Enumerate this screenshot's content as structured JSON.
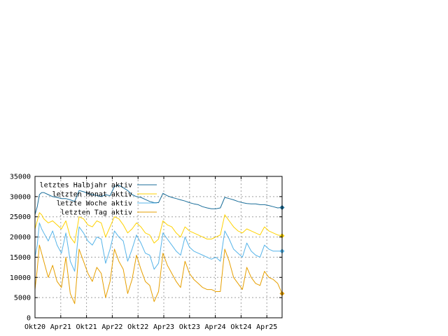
{
  "chart_data": {
    "type": "line",
    "xlabel": "",
    "ylabel": "",
    "ylim": [
      0,
      35000
    ],
    "y_ticks": [
      0,
      5000,
      10000,
      15000,
      20000,
      25000,
      30000,
      35000
    ],
    "x_ticks": [
      "Okt20",
      "Apr21",
      "Okt21",
      "Apr22",
      "Okt22",
      "Apr23",
      "Okt23",
      "Apr24",
      "Okt24",
      "Apr25"
    ],
    "grid": true,
    "legend_position": "top-left",
    "series": [
      {
        "name": "letztes Halbjahr aktiv",
        "color": "#1a6e9a",
        "marker_end": true,
        "x": [
          0,
          0.5,
          1,
          1.5,
          2,
          3,
          4,
          5,
          6,
          7,
          8,
          9,
          10,
          11,
          12,
          13,
          14,
          15,
          16,
          17,
          18,
          19,
          20,
          21,
          22,
          23,
          24,
          25,
          26,
          27,
          28,
          29,
          30,
          31,
          32,
          33,
          34,
          35,
          36,
          37,
          38,
          39,
          40,
          41,
          42,
          43,
          44,
          45,
          46,
          47,
          48,
          49,
          50,
          51,
          52,
          53,
          54,
          55,
          56
        ],
        "values": [
          25500,
          27500,
          30500,
          31000,
          31000,
          30500,
          30000,
          29800,
          29500,
          29500,
          29200,
          28800,
          31500,
          31200,
          30800,
          30500,
          30300,
          30000,
          30500,
          30200,
          32500,
          32800,
          32200,
          31500,
          30500,
          30000,
          29800,
          29300,
          28800,
          28500,
          28500,
          30800,
          30200,
          29800,
          29500,
          29200,
          28900,
          28500,
          28200,
          28000,
          27500,
          27200,
          27000,
          27000,
          27200,
          29800,
          29500,
          29200,
          28800,
          28500,
          28300,
          28200,
          28200,
          28000,
          28000,
          27800,
          27500,
          27200,
          27300
        ]
      },
      {
        "name": "letzten Monat aktiv",
        "color": "#ffd200",
        "marker_end": true,
        "x": [
          0,
          0.5,
          1,
          1.5,
          2,
          3,
          4,
          5,
          6,
          7,
          8,
          9,
          10,
          11,
          12,
          13,
          14,
          15,
          16,
          17,
          18,
          19,
          20,
          21,
          22,
          23,
          24,
          25,
          26,
          27,
          28,
          29,
          30,
          31,
          32,
          33,
          34,
          35,
          36,
          37,
          38,
          39,
          40,
          41,
          42,
          43,
          44,
          45,
          46,
          47,
          48,
          49,
          50,
          51,
          52,
          53,
          54,
          55,
          56
        ],
        "values": [
          22000,
          24000,
          26000,
          25500,
          24500,
          23500,
          24000,
          23000,
          22000,
          24000,
          20000,
          18500,
          25000,
          24500,
          23000,
          22500,
          24000,
          23500,
          20000,
          22500,
          25000,
          24500,
          23000,
          21000,
          22000,
          23500,
          22500,
          21000,
          20500,
          18500,
          19500,
          24000,
          23000,
          22500,
          21000,
          20000,
          22500,
          21500,
          21000,
          20500,
          20000,
          19500,
          19500,
          20000,
          20500,
          25500,
          24000,
          22500,
          21500,
          21000,
          22000,
          21500,
          21000,
          20500,
          22500,
          21500,
          21000,
          20500,
          20300
        ]
      },
      {
        "name": "letzte Woche aktiv",
        "color": "#56b4e9",
        "marker_end": true,
        "x": [
          0,
          0.5,
          1,
          1.5,
          2,
          3,
          4,
          5,
          6,
          7,
          8,
          9,
          10,
          11,
          12,
          13,
          14,
          15,
          16,
          17,
          18,
          19,
          20,
          21,
          22,
          23,
          24,
          25,
          26,
          27,
          28,
          29,
          30,
          31,
          32,
          33,
          34,
          35,
          36,
          37,
          38,
          39,
          40,
          41,
          42,
          43,
          44,
          45,
          46,
          47,
          48,
          49,
          50,
          51,
          52,
          53,
          54,
          55,
          56
        ],
        "values": [
          15000,
          18000,
          23500,
          22000,
          21000,
          19000,
          21500,
          18000,
          16000,
          21000,
          14000,
          11500,
          22500,
          21000,
          19000,
          18000,
          20000,
          19500,
          13500,
          17000,
          21500,
          20000,
          19000,
          14000,
          17000,
          20500,
          18500,
          16000,
          15500,
          12000,
          13500,
          21000,
          19500,
          18000,
          16500,
          15500,
          20000,
          17500,
          16500,
          16000,
          15500,
          15000,
          14500,
          15000,
          14000,
          21500,
          19500,
          17000,
          16000,
          15000,
          18500,
          16500,
          15500,
          15000,
          18000,
          17000,
          16500,
          16500,
          16500
        ]
      },
      {
        "name": "letzten Tag aktiv",
        "color": "#e69f00",
        "marker_end": true,
        "x": [
          0,
          0.5,
          1,
          1.5,
          2,
          3,
          4,
          5,
          6,
          7,
          8,
          9,
          10,
          11,
          12,
          13,
          14,
          15,
          16,
          17,
          18,
          19,
          20,
          21,
          22,
          23,
          24,
          25,
          26,
          27,
          28,
          29,
          30,
          31,
          32,
          33,
          34,
          35,
          36,
          37,
          38,
          39,
          40,
          41,
          42,
          43,
          44,
          45,
          46,
          47,
          48,
          49,
          50,
          51,
          52,
          53,
          54,
          55,
          56
        ],
        "values": [
          7000,
          12000,
          18000,
          16000,
          14000,
          10000,
          13000,
          9000,
          7500,
          15000,
          6000,
          3500,
          17000,
          14000,
          11000,
          9000,
          12500,
          11000,
          5000,
          9000,
          17000,
          14000,
          12000,
          6000,
          9500,
          15500,
          12000,
          9000,
          8000,
          4000,
          6500,
          16000,
          13000,
          11000,
          9000,
          7500,
          14000,
          11000,
          9500,
          8500,
          7500,
          7000,
          7000,
          6500,
          6500,
          17000,
          14000,
          10000,
          8500,
          7000,
          12500,
          10000,
          8500,
          8000,
          11500,
          10000,
          9500,
          8500,
          6000
        ]
      }
    ]
  }
}
